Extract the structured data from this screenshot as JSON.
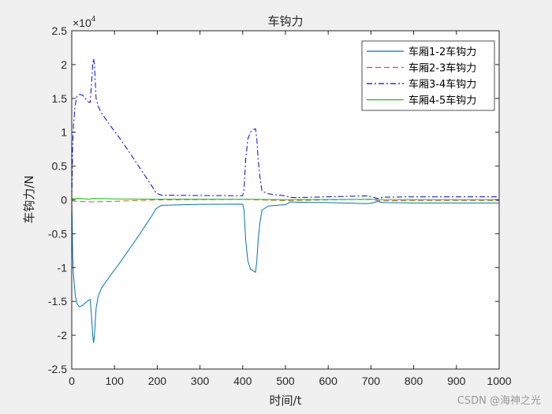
{
  "chart_data": {
    "type": "line",
    "title": "车钩力",
    "xlabel": "时间/t",
    "ylabel": "车钩力/N",
    "xlim": [
      0,
      1000
    ],
    "ylim": [
      -25000,
      25000
    ],
    "exponent_label": "×10",
    "exponent_power": "4",
    "xticks": [
      0,
      100,
      200,
      300,
      400,
      500,
      600,
      700,
      800,
      900,
      1000
    ],
    "yticks": [
      -2.5,
      -2,
      -1.5,
      -1,
      -0.5,
      0,
      0.5,
      1,
      1.5,
      2,
      2.5
    ],
    "ytick_labels": [
      "-2.5",
      "-2",
      "-1.5",
      "-1",
      "-0.5",
      "0",
      "0.5",
      "1",
      "1.5",
      "2",
      "2.5"
    ],
    "grid": false,
    "legend_position": "top-right",
    "series": [
      {
        "name": "车厢1-2车钩力",
        "color": "#0072BD",
        "style": "solid",
        "points": [
          [
            0,
            0
          ],
          [
            1,
            -3000
          ],
          [
            2,
            -8000
          ],
          [
            4,
            -11000
          ],
          [
            8,
            -14000
          ],
          [
            12,
            -15300
          ],
          [
            18,
            -15800
          ],
          [
            25,
            -15600
          ],
          [
            32,
            -15200
          ],
          [
            38,
            -14900
          ],
          [
            43,
            -14700
          ],
          [
            46,
            -17000
          ],
          [
            49,
            -20000
          ],
          [
            51,
            -21100
          ],
          [
            53,
            -20000
          ],
          [
            57,
            -16000
          ],
          [
            62,
            -14200
          ],
          [
            70,
            -13000
          ],
          [
            90,
            -11200
          ],
          [
            110,
            -9500
          ],
          [
            130,
            -7700
          ],
          [
            150,
            -5900
          ],
          [
            170,
            -4000
          ],
          [
            190,
            -2100
          ],
          [
            197,
            -1300
          ],
          [
            210,
            -800
          ],
          [
            300,
            -650
          ],
          [
            400,
            -620
          ],
          [
            403,
            -1500
          ],
          [
            407,
            -6000
          ],
          [
            412,
            -9000
          ],
          [
            418,
            -10200
          ],
          [
            425,
            -10500
          ],
          [
            430,
            -10700
          ],
          [
            433,
            -9000
          ],
          [
            436,
            -6000
          ],
          [
            440,
            -3500
          ],
          [
            445,
            -1500
          ],
          [
            460,
            -900
          ],
          [
            500,
            -700
          ],
          [
            512,
            -300
          ],
          [
            530,
            -350
          ],
          [
            600,
            -400
          ],
          [
            690,
            -550
          ],
          [
            700,
            -500
          ],
          [
            715,
            -250
          ],
          [
            730,
            -400
          ],
          [
            800,
            -450
          ],
          [
            1000,
            -450
          ]
        ]
      },
      {
        "name": "车厢2-3车钩力",
        "color": "#D95319",
        "style": "dashed",
        "points": [
          [
            0,
            0
          ],
          [
            5,
            -200
          ],
          [
            20,
            -250
          ],
          [
            50,
            -300
          ],
          [
            100,
            -200
          ],
          [
            200,
            0
          ],
          [
            400,
            80
          ],
          [
            440,
            0
          ],
          [
            500,
            -100
          ],
          [
            600,
            0
          ],
          [
            700,
            100
          ],
          [
            720,
            -150
          ],
          [
            800,
            -80
          ],
          [
            1000,
            -80
          ]
        ]
      },
      {
        "name": "车厢3-4车钩力",
        "color": "#0000FF",
        "style": "dashdot",
        "points": [
          [
            0,
            0
          ],
          [
            1,
            3000
          ],
          [
            2,
            8000
          ],
          [
            4,
            11000
          ],
          [
            8,
            14000
          ],
          [
            12,
            15300
          ],
          [
            18,
            15600
          ],
          [
            25,
            15500
          ],
          [
            32,
            15000
          ],
          [
            38,
            14500
          ],
          [
            43,
            14400
          ],
          [
            46,
            17000
          ],
          [
            49,
            20000
          ],
          [
            51,
            20900
          ],
          [
            53,
            20000
          ],
          [
            57,
            15000
          ],
          [
            62,
            13800
          ],
          [
            70,
            12800
          ],
          [
            90,
            11000
          ],
          [
            110,
            9300
          ],
          [
            130,
            7500
          ],
          [
            150,
            5600
          ],
          [
            170,
            3700
          ],
          [
            190,
            1800
          ],
          [
            197,
            1000
          ],
          [
            210,
            700
          ],
          [
            300,
            650
          ],
          [
            400,
            620
          ],
          [
            403,
            1500
          ],
          [
            407,
            6000
          ],
          [
            412,
            9000
          ],
          [
            418,
            10000
          ],
          [
            425,
            10400
          ],
          [
            430,
            10500
          ],
          [
            433,
            9000
          ],
          [
            436,
            6000
          ],
          [
            440,
            3500
          ],
          [
            445,
            1300
          ],
          [
            460,
            900
          ],
          [
            500,
            600
          ],
          [
            512,
            350
          ],
          [
            530,
            350
          ],
          [
            600,
            450
          ],
          [
            690,
            600
          ],
          [
            700,
            500
          ],
          [
            715,
            200
          ],
          [
            730,
            400
          ],
          [
            800,
            450
          ],
          [
            1000,
            450
          ]
        ]
      },
      {
        "name": "车厢4-5车钩力",
        "color": "#00CC00",
        "style": "solid",
        "points": [
          [
            0,
            0
          ],
          [
            3,
            200
          ],
          [
            20,
            220
          ],
          [
            40,
            100
          ],
          [
            50,
            220
          ],
          [
            100,
            150
          ],
          [
            200,
            100
          ],
          [
            400,
            100
          ],
          [
            440,
            70
          ],
          [
            500,
            50
          ],
          [
            600,
            60
          ],
          [
            700,
            80
          ],
          [
            720,
            50
          ],
          [
            800,
            50
          ],
          [
            1000,
            50
          ]
        ]
      }
    ]
  },
  "watermark": "CSDN @海神之光"
}
